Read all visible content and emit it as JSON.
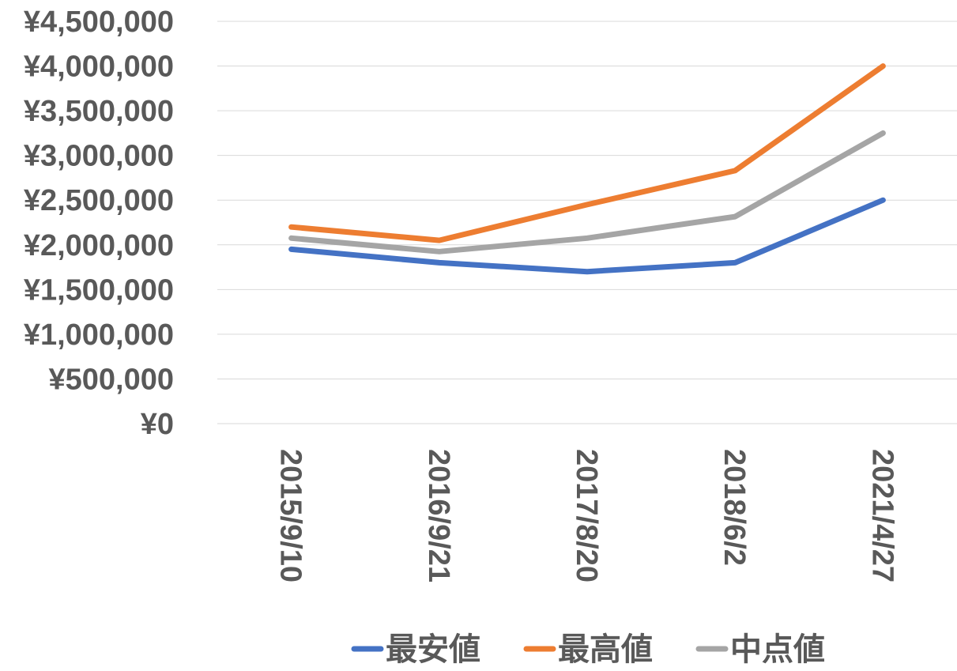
{
  "chart_data": {
    "type": "line",
    "categories": [
      "2015/9/10",
      "2016/9/21",
      "2017/8/20",
      "2018/6/2",
      "2021/4/27"
    ],
    "series": [
      {
        "name": "最安値",
        "color": "#4472C4",
        "values": [
          1950000,
          1800000,
          1700000,
          1800000,
          2500000
        ]
      },
      {
        "name": "最高値",
        "color": "#ED7D31",
        "values": [
          2200000,
          2050000,
          2450000,
          2830000,
          4000000
        ]
      },
      {
        "name": "中点値",
        "color": "#A5A5A5",
        "values": [
          2075000,
          1925000,
          2075000,
          2315000,
          3250000
        ]
      }
    ],
    "y_ticks": [
      "¥0",
      "¥500,000",
      "¥1,000,000",
      "¥1,500,000",
      "¥2,000,000",
      "¥2,500,000",
      "¥3,000,000",
      "¥3,500,000",
      "¥4,000,000",
      "¥4,500,000"
    ],
    "ylim": [
      0,
      4500000
    ],
    "grid": true,
    "legend_position": "bottom"
  }
}
